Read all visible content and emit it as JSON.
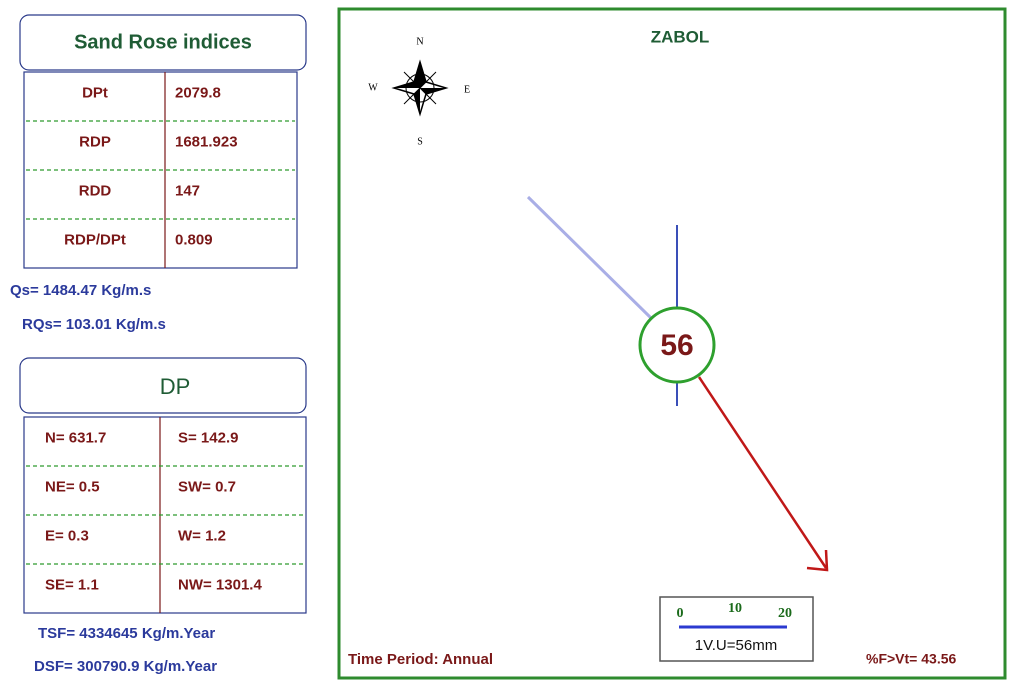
{
  "indices": {
    "title": "Sand Rose indices",
    "rows": [
      [
        "DPt",
        "2079.8"
      ],
      [
        "RDP",
        "1681.923"
      ],
      [
        "RDD",
        "147"
      ],
      [
        "RDP/DPt",
        "0.809"
      ]
    ]
  },
  "qs": "Qs= 1484.47 Kg/m.s",
  "rqs": "RQs= 103.01 Kg/m.s",
  "dp": {
    "title": "DP",
    "rows": [
      [
        "N= 631.7",
        "S= 142.9"
      ],
      [
        "NE= 0.5",
        "SW=   0.7"
      ],
      [
        "E= 0.3",
        "W= 1.2"
      ],
      [
        "SE= 1.1",
        "NW= 1301.4"
      ]
    ]
  },
  "tsf": "TSF= 4334645 Kg/m.Year",
  "dsf": "DSF= 300790.9 Kg/m.Year",
  "rose": {
    "title": "ZABOL",
    "center_label": "56",
    "compass": {
      "n": "N",
      "e": "E",
      "s": "S",
      "w": "W"
    },
    "scale": {
      "ticks": [
        "0",
        "10",
        "20"
      ],
      "unit": "1V.U=56mm"
    },
    "time_period": "Time Period: Annual",
    "frequency": "%F>Vt= 43.56"
  }
}
